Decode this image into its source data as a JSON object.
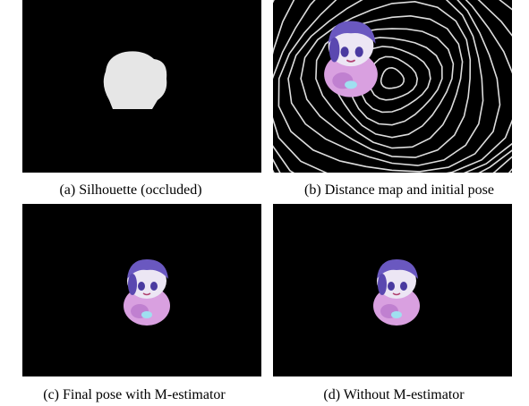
{
  "figure": {
    "panels": [
      {
        "caption": "(a) Silhouette (occluded)"
      },
      {
        "caption": "(b) Distance map and initial pose"
      },
      {
        "caption": "(c) Final pose with M-estimator"
      },
      {
        "caption": "(d) Without M-estimator"
      }
    ]
  }
}
